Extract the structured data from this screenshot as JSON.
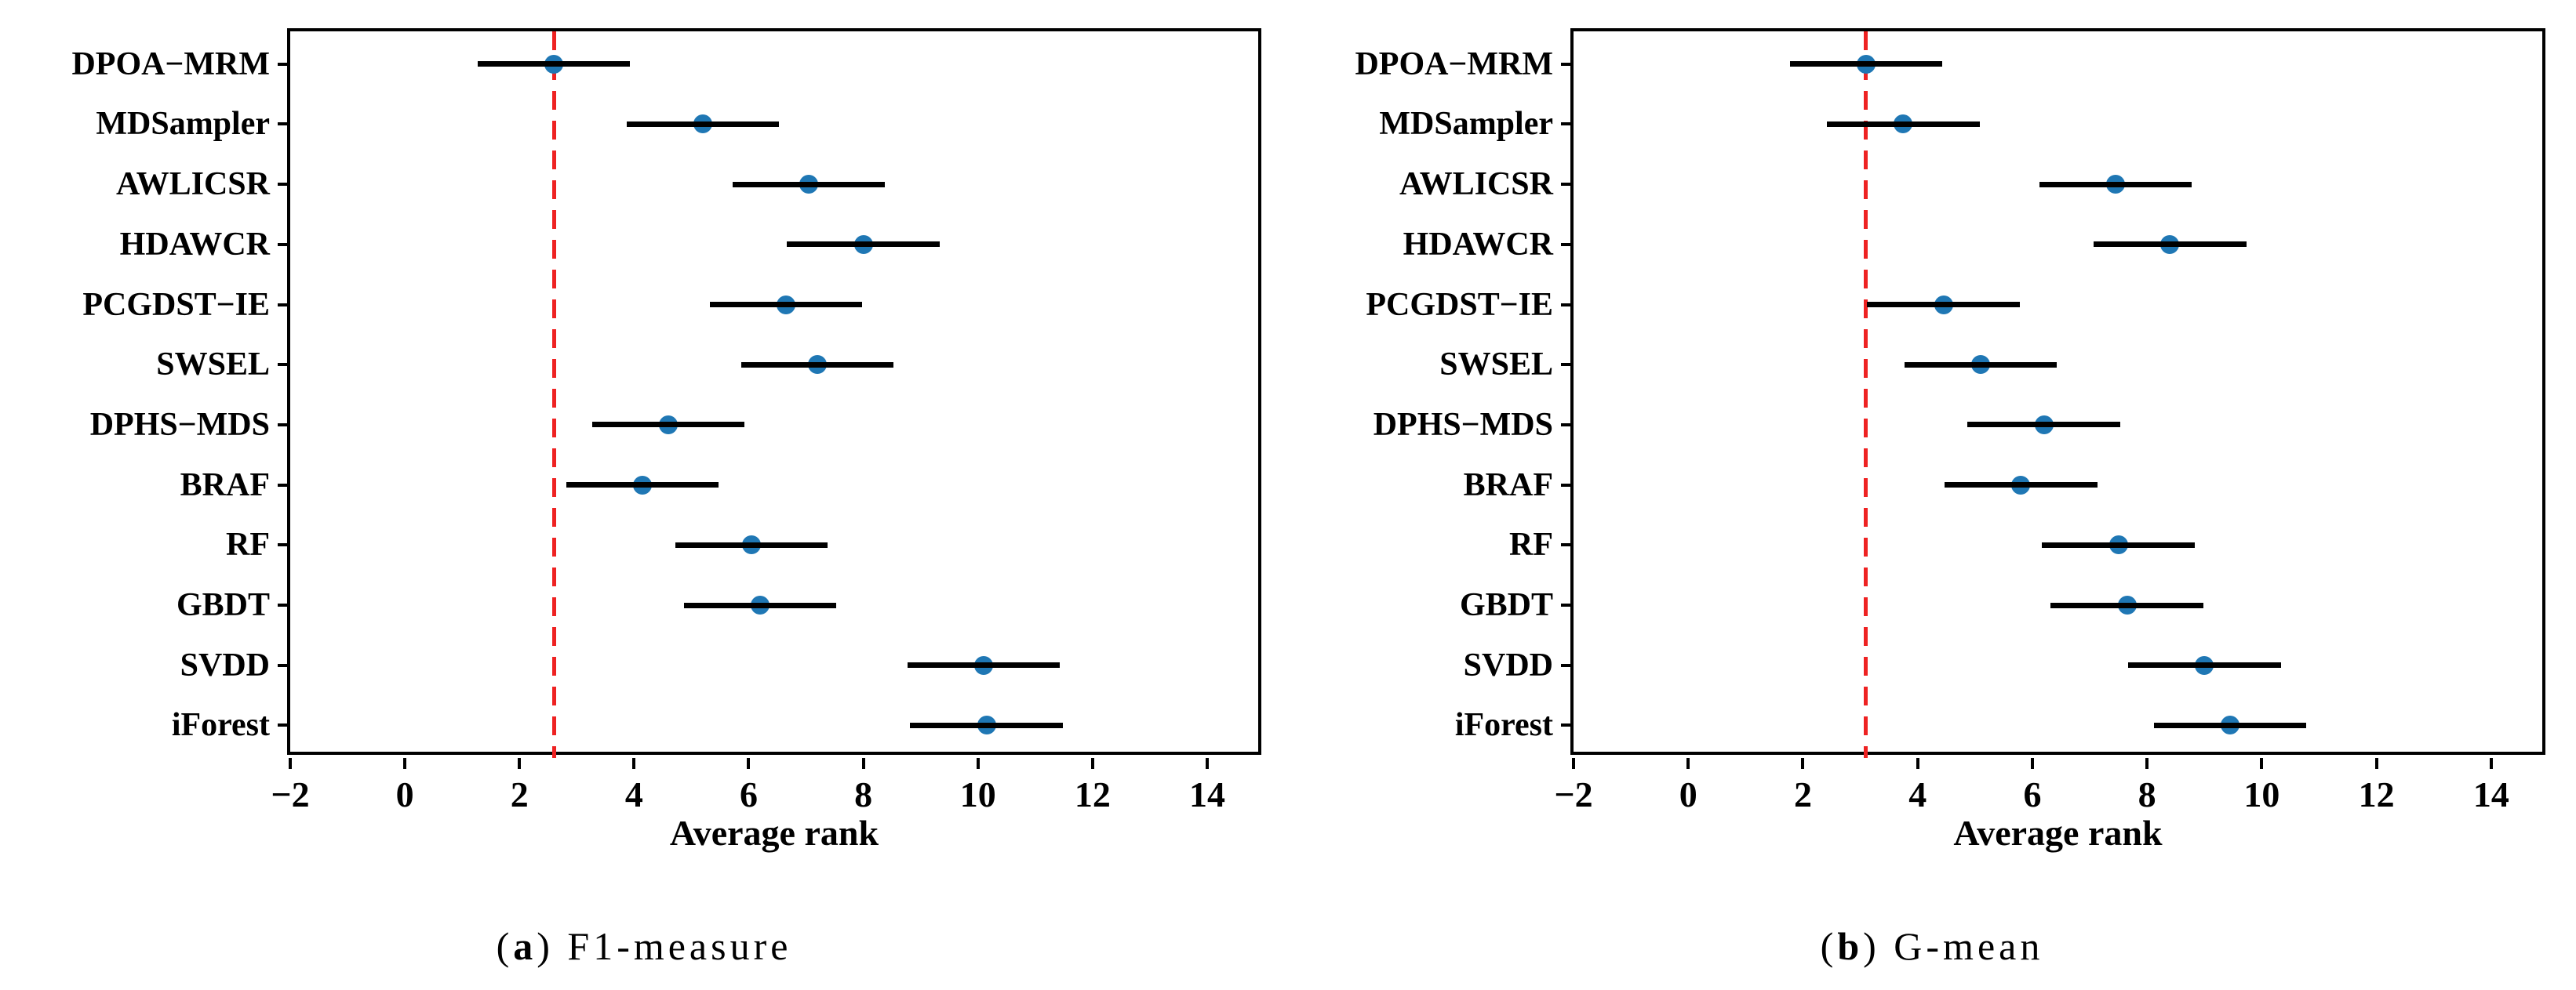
{
  "figure": {
    "xlabel": "Average rank",
    "colors": {
      "dot": "#1f77b4",
      "error_bar": "#000000",
      "reference_line": "#ee2222",
      "axis": "#000000",
      "text": "#000000",
      "background": "#ffffff"
    },
    "panels": [
      {
        "caption_open": "(",
        "caption_letter": "a",
        "caption_rest": ") F1-measure"
      },
      {
        "caption_open": "(",
        "caption_letter": "b",
        "caption_rest": ") G-mean"
      }
    ]
  },
  "chart_data": [
    {
      "type": "scatter",
      "subtype": "horizontal-dot-with-errorbar",
      "title": "(a) F1-measure",
      "xlabel": "Average rank",
      "xlim": [
        -2,
        15
      ],
      "x_ticks": [
        -2,
        0,
        2,
        4,
        6,
        8,
        10,
        12,
        14
      ],
      "x_tick_labels": [
        "−2",
        "0",
        "2",
        "4",
        "6",
        "8",
        "10",
        "12",
        "14"
      ],
      "categories": [
        "DPOA−MRM",
        "MDSampler",
        "AWLICSR",
        "HDAWCR",
        "PCGDST−IE",
        "SWSEL",
        "DPHS−MDS",
        "BRAF",
        "RF",
        "GBDT",
        "SVDD",
        "iForest"
      ],
      "values": [
        2.6,
        5.2,
        7.05,
        8.0,
        6.65,
        7.2,
        4.6,
        4.15,
        6.05,
        6.2,
        10.1,
        10.15
      ],
      "error_half_width": 1.33,
      "reference_line_x": 2.6,
      "reference_line_style": "dashed",
      "grid": false,
      "legend": false
    },
    {
      "type": "scatter",
      "subtype": "horizontal-dot-with-errorbar",
      "title": "(b) G-mean",
      "xlabel": "Average rank",
      "xlim": [
        -2,
        15
      ],
      "x_ticks": [
        -2,
        0,
        2,
        4,
        6,
        8,
        10,
        12,
        14
      ],
      "x_tick_labels": [
        "−2",
        "0",
        "2",
        "4",
        "6",
        "8",
        "10",
        "12",
        "14"
      ],
      "categories": [
        "DPOA−MRM",
        "MDSampler",
        "AWLICSR",
        "HDAWCR",
        "PCGDST−IE",
        "SWSEL",
        "DPHS−MDS",
        "BRAF",
        "RF",
        "GBDT",
        "SVDD",
        "iForest"
      ],
      "values": [
        3.1,
        3.75,
        7.45,
        8.4,
        4.45,
        5.1,
        6.2,
        5.8,
        7.5,
        7.65,
        9.0,
        9.45
      ],
      "error_half_width": 1.33,
      "reference_line_x": 3.1,
      "reference_line_style": "dashed",
      "grid": false,
      "legend": false
    }
  ]
}
